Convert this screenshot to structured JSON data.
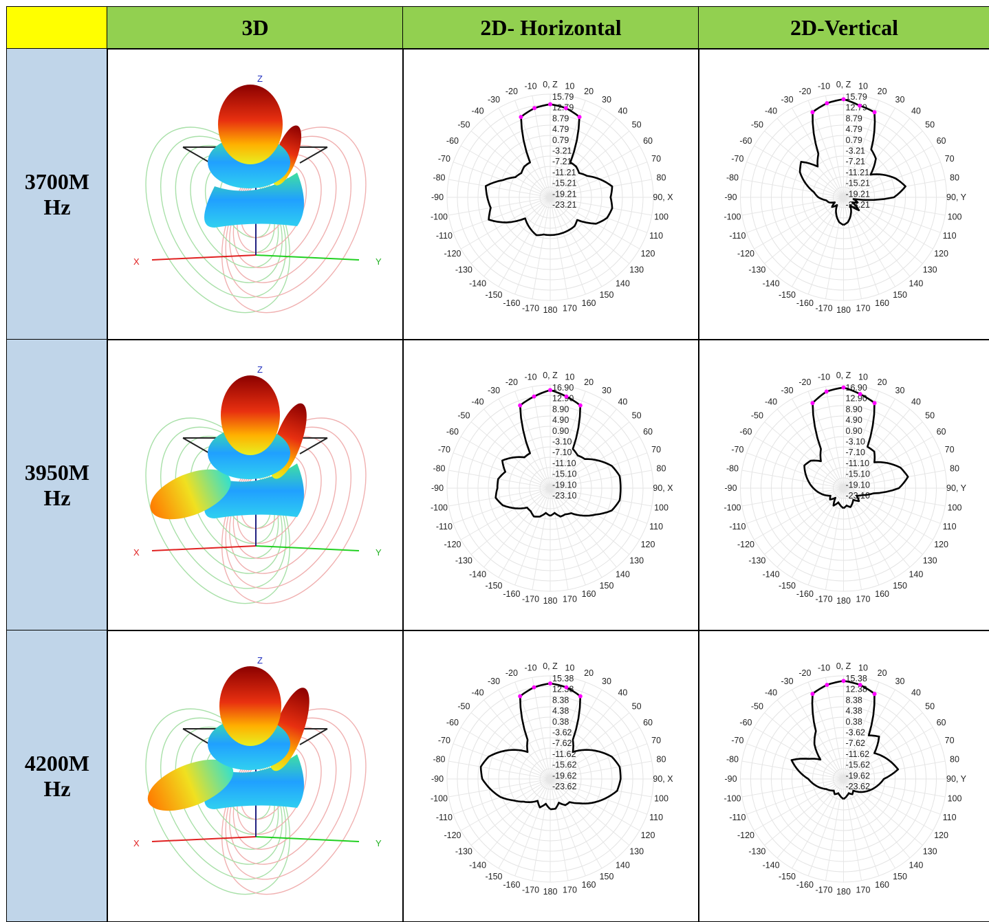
{
  "table": {
    "corner_color": "#ffff00",
    "header_color": "#92d050",
    "label_color": "#c0d5e9",
    "headers": [
      "3D",
      "2D- Horizontal",
      "2D-Vertical"
    ]
  },
  "rows": [
    {
      "freq_line1": "3700M",
      "freq_line2": "Hz",
      "axis_labels": {
        "x": "X",
        "y": "Y",
        "z": "Z"
      },
      "shape": {
        "main_lobe_r": 47,
        "side_lobe": 0.2,
        "hot_lobe": 0
      },
      "horizontal": {
        "radial_labels": [
          "15.79",
          "12.79",
          "8.79",
          "4.79",
          "0.79",
          "-3.21",
          "-7.21",
          "-11.21",
          "-15.21",
          "-19.21",
          "-23.21"
        ]
      },
      "vertical": {
        "radial_labels": [
          "15.79",
          "12.79",
          "8.79",
          "4.79",
          "0.79",
          "-3.21",
          "-7.21",
          "-11.21",
          "-15.21",
          "-19.21",
          "-23.21"
        ]
      }
    },
    {
      "freq_line1": "3950M",
      "freq_line2": "Hz",
      "axis_labels": {
        "x": "X",
        "y": "Y",
        "z": "Z"
      },
      "shape": {
        "main_lobe_r": 43,
        "side_lobe": 0.6,
        "hot_lobe": 0.6
      },
      "horizontal": {
        "radial_labels": [
          "16.90",
          "12.90",
          "8.90",
          "4.90",
          "0.90",
          "-3.10",
          "-7.10",
          "-11.10",
          "-15.10",
          "-19.10",
          "-23.10"
        ]
      },
      "vertical": {
        "radial_labels": [
          "16.90",
          "12.90",
          "8.90",
          "4.90",
          "0.90",
          "-3.10",
          "-7.10",
          "-11.10",
          "-15.10",
          "-19.10",
          "-23.10"
        ]
      }
    },
    {
      "freq_line1": "4200M",
      "freq_line2": "Hz",
      "axis_labels": {
        "x": "X",
        "y": "Y",
        "z": "Z"
      },
      "shape": {
        "main_lobe_r": 45,
        "side_lobe": 0.8,
        "hot_lobe": 0.8
      },
      "horizontal": {
        "radial_labels": [
          "15.38",
          "12.38",
          "8.38",
          "4.38",
          "0.38",
          "-3.62",
          "-7.62",
          "-11.62",
          "-15.62",
          "-19.62",
          "-23.62"
        ]
      },
      "vertical": {
        "radial_labels": [
          "15.38",
          "12.38",
          "8.38",
          "4.38",
          "0.38",
          "-3.62",
          "-7.62",
          "-11.62",
          "-15.62",
          "-19.62",
          "-23.62"
        ]
      }
    }
  ],
  "chart_data": [
    {
      "type": "polar",
      "plane": "horizontal",
      "frequency": "3700MHz",
      "axis_end_label": "90, X",
      "angles_deg": [
        -180,
        -170,
        -160,
        -150,
        -140,
        -130,
        -120,
        -110,
        -100,
        -90,
        -80,
        -70,
        -60,
        -50,
        -40,
        -30,
        -20,
        -10,
        0,
        10,
        20,
        30,
        40,
        50,
        60,
        70,
        80,
        90,
        100,
        110,
        120,
        130,
        140,
        150,
        160,
        170,
        180
      ],
      "gain_dbi": [
        -9,
        -9,
        -8,
        -9,
        -10,
        -11,
        -4,
        2,
        0,
        1,
        2,
        -4,
        -8,
        -9,
        -8,
        -8,
        10,
        12,
        13,
        12,
        10,
        -8,
        -8,
        -9,
        -7,
        -3,
        1,
        0,
        1,
        0,
        -3,
        -10,
        -9,
        -9,
        -9,
        -9,
        -9
      ]
    },
    {
      "type": "polar",
      "plane": "vertical",
      "frequency": "3700MHz",
      "axis_end_label": "90, Y",
      "angles_deg": [
        -180,
        -170,
        -160,
        -150,
        -140,
        -130,
        -120,
        -110,
        -100,
        -90,
        -80,
        -70,
        -60,
        -50,
        -40,
        -30,
        -20,
        -10,
        0,
        10,
        20,
        30,
        40,
        50,
        60,
        70,
        80,
        90,
        100,
        110,
        120,
        130,
        140,
        150,
        160,
        170,
        180
      ],
      "gain_dbi": [
        -13,
        -14,
        -16,
        -18,
        -20,
        -18,
        -20,
        -18,
        -17,
        -14,
        -12,
        -8,
        -4,
        -2,
        -8,
        -4,
        12,
        14,
        15,
        13,
        12,
        -2,
        -4,
        -10,
        -6,
        -2,
        1,
        -4,
        -20,
        -18,
        -20,
        -16,
        -20,
        -18,
        -16,
        -14,
        -13
      ]
    },
    {
      "type": "polar",
      "plane": "horizontal",
      "frequency": "3950MHz",
      "axis_end_label": "90, X",
      "angles_deg": [
        -180,
        -170,
        -160,
        -150,
        -140,
        -130,
        -120,
        -110,
        -100,
        -90,
        -80,
        -70,
        -60,
        -50,
        -40,
        -30,
        -20,
        -10,
        0,
        10,
        20,
        30,
        40,
        50,
        60,
        70,
        80,
        90,
        100,
        110,
        120,
        130,
        140,
        150,
        160,
        170,
        180
      ],
      "gain_dbi": [
        -13,
        -14,
        -12,
        -11,
        -12,
        -12,
        -8,
        -4,
        -2,
        -3,
        -3,
        -5,
        -2,
        -5,
        -8,
        -8,
        11,
        13,
        15,
        13,
        11,
        -6,
        -7,
        -6,
        -2,
        2,
        4,
        4,
        4,
        2,
        -3,
        -7,
        -11,
        -12,
        -12,
        -14,
        -13
      ]
    },
    {
      "type": "polar",
      "plane": "vertical",
      "frequency": "3950MHz",
      "axis_end_label": "90, Y",
      "angles_deg": [
        -180,
        -170,
        -160,
        -150,
        -140,
        -130,
        -120,
        -110,
        -100,
        -90,
        -80,
        -70,
        -60,
        -50,
        -40,
        -30,
        -20,
        -10,
        0,
        10,
        20,
        30,
        40,
        50,
        60,
        70,
        80,
        90,
        100,
        110,
        120,
        130,
        140,
        150,
        160,
        170,
        180
      ],
      "gain_dbi": [
        -16,
        -17,
        -18,
        -16,
        -19,
        -17,
        -18,
        -16,
        -14,
        -12,
        -10,
        -8,
        -6,
        -7,
        -10,
        -6,
        12,
        15,
        16,
        14,
        12,
        -5,
        -5,
        -8,
        -4,
        0,
        2,
        -2,
        -12,
        -16,
        -18,
        -16,
        -18,
        -17,
        -16,
        -17,
        -16
      ]
    },
    {
      "type": "polar",
      "plane": "horizontal",
      "frequency": "4200MHz",
      "axis_end_label": "90, X",
      "angles_deg": [
        -180,
        -170,
        -160,
        -150,
        -140,
        -130,
        -120,
        -110,
        -100,
        -90,
        -80,
        -70,
        -60,
        -50,
        -40,
        -30,
        -20,
        -10,
        0,
        10,
        20,
        30,
        40,
        50,
        60,
        70,
        80,
        90,
        100,
        110,
        120,
        130,
        140,
        150,
        160,
        170,
        180
      ],
      "gain_dbi": [
        -12,
        -14,
        -12,
        -14,
        -12,
        -10,
        -7,
        -3,
        0,
        3,
        4,
        2,
        -2,
        -6,
        -10,
        -6,
        11,
        13,
        14,
        13,
        11,
        -6,
        -10,
        -6,
        -2,
        2,
        4,
        4,
        3,
        -1,
        -5,
        -9,
        -12,
        -12,
        -14,
        -12,
        -12
      ]
    },
    {
      "type": "polar",
      "plane": "vertical",
      "frequency": "4200MHz",
      "axis_end_label": "90, Y",
      "angles_deg": [
        -180,
        -170,
        -160,
        -150,
        -140,
        -130,
        -120,
        -110,
        -100,
        -90,
        -80,
        -70,
        -60,
        -50,
        -40,
        -30,
        -20,
        -10,
        0,
        10,
        20,
        30,
        40,
        50,
        60,
        70,
        80,
        90,
        100,
        110,
        120,
        130,
        140,
        150,
        160,
        170,
        180
      ],
      "gain_dbi": [
        -16,
        -17,
        -18,
        -17,
        -18,
        -17,
        -16,
        -14,
        -12,
        -10,
        -6,
        -2,
        -8,
        -12,
        -6,
        -2,
        12,
        14,
        15,
        14,
        12,
        -4,
        -2,
        -8,
        -6,
        -4,
        -2,
        -8,
        -10,
        -12,
        -14,
        -16,
        -18,
        -17,
        -18,
        -17,
        -16
      ]
    }
  ]
}
